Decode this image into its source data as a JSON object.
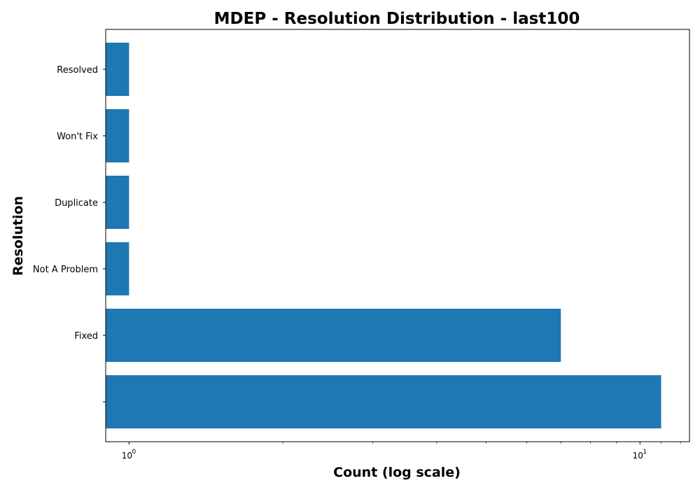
{
  "chart_data": {
    "type": "bar",
    "orientation": "horizontal",
    "title": "MDEP - Resolution Distribution - last100",
    "xlabel": "Count (log scale)",
    "ylabel": "Resolution",
    "x_scale": "log",
    "xlim": [
      0.9,
      12.5
    ],
    "x_ticks": [
      {
        "base": "10",
        "exp": "0",
        "value": 1
      },
      {
        "base": "10",
        "exp": "1",
        "value": 10
      }
    ],
    "grid": false,
    "bar_color": "#1f77b4",
    "categories": [
      "",
      "Fixed",
      "Not A Problem",
      "Duplicate",
      "Won't Fix",
      "Resolved"
    ],
    "values": [
      11,
      7,
      1,
      1,
      1,
      1
    ]
  }
}
